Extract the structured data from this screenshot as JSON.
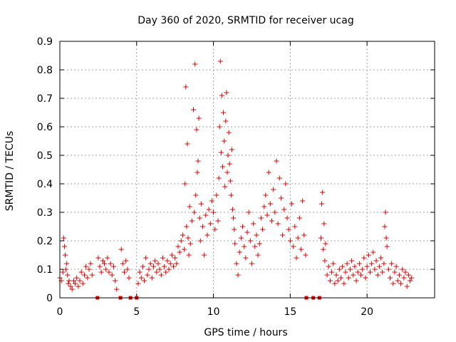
{
  "chart_data": {
    "type": "scatter",
    "title": "Day 360 of 2020, SRMTID for receiver ucag",
    "xlabel": "GPS time / hours",
    "ylabel": "SRMTID / TECUs",
    "xlim": [
      0,
      24.4
    ],
    "ylim": [
      0,
      0.9
    ],
    "xticks": [
      0,
      5,
      10,
      15,
      20
    ],
    "yticks": [
      0,
      0.1,
      0.2,
      0.3,
      0.4,
      0.5,
      0.6,
      0.7,
      0.8,
      0.9
    ],
    "ytick_labels": [
      "0",
      "0.1",
      "0.2",
      "0.3",
      "0.4",
      "0.5",
      "0.6",
      "0.7",
      "0.8",
      "0.9"
    ],
    "xtick_labels": [
      "0",
      "5",
      "10",
      "15",
      "20"
    ],
    "grid": true,
    "marker": "plus",
    "color": "#e00000",
    "missing_data_markers_x": [
      2.45,
      3.95,
      4.6,
      5.0,
      16.05,
      16.5,
      16.9
    ],
    "series": [
      {
        "name": "SRMTID",
        "x": [
          0.0,
          0.1,
          0.2,
          0.25,
          0.3,
          0.35,
          0.4,
          0.45,
          0.5,
          0.55,
          0.6,
          0.7,
          0.8,
          0.9,
          1.0,
          1.1,
          1.2,
          1.3,
          1.4,
          1.5,
          1.6,
          1.7,
          1.8,
          1.9,
          2.0,
          2.1,
          2.5,
          2.6,
          2.7,
          2.8,
          2.9,
          3.0,
          3.1,
          3.2,
          3.3,
          3.4,
          3.5,
          3.6,
          3.7,
          4.0,
          4.1,
          4.2,
          4.3,
          4.4,
          4.5,
          5.1,
          5.2,
          5.3,
          5.4,
          5.5,
          5.6,
          5.7,
          5.8,
          5.9,
          6.0,
          6.1,
          6.2,
          6.3,
          6.4,
          6.5,
          6.6,
          6.7,
          6.8,
          6.9,
          7.0,
          7.1,
          7.2,
          7.3,
          7.4,
          7.5,
          7.6,
          7.7,
          7.8,
          7.9,
          8.0,
          8.1,
          8.15,
          8.2,
          8.25,
          8.3,
          8.35,
          8.4,
          8.45,
          8.5,
          8.6,
          8.7,
          8.75,
          8.8,
          8.85,
          8.9,
          8.95,
          9.0,
          9.05,
          9.1,
          9.15,
          9.2,
          9.3,
          9.4,
          9.5,
          9.6,
          9.7,
          9.8,
          9.9,
          10.0,
          10.1,
          10.2,
          10.3,
          10.35,
          10.4,
          10.45,
          10.5,
          10.55,
          10.6,
          10.65,
          10.7,
          10.75,
          10.8,
          10.85,
          10.9,
          10.95,
          11.0,
          11.05,
          11.1,
          11.15,
          11.2,
          11.25,
          11.3,
          11.35,
          11.4,
          11.5,
          11.6,
          11.7,
          11.8,
          11.9,
          12.0,
          12.1,
          12.2,
          12.3,
          12.4,
          12.5,
          12.6,
          12.7,
          12.8,
          12.9,
          13.0,
          13.1,
          13.2,
          13.3,
          13.4,
          13.5,
          13.6,
          13.7,
          13.8,
          13.9,
          14.0,
          14.1,
          14.2,
          14.3,
          14.4,
          14.5,
          14.6,
          14.7,
          14.8,
          14.9,
          15.0,
          15.1,
          15.2,
          15.3,
          15.4,
          15.5,
          15.6,
          15.7,
          15.8,
          15.9,
          16.0,
          17.0,
          17.05,
          17.1,
          17.15,
          17.2,
          17.25,
          17.3,
          17.4,
          17.5,
          17.6,
          17.7,
          17.8,
          17.9,
          18.0,
          18.1,
          18.2,
          18.3,
          18.4,
          18.5,
          18.6,
          18.7,
          18.8,
          18.9,
          19.0,
          19.1,
          19.2,
          19.3,
          19.4,
          19.5,
          19.6,
          19.7,
          19.8,
          19.9,
          20.0,
          20.1,
          20.2,
          20.3,
          20.4,
          20.5,
          20.6,
          20.7,
          20.8,
          20.9,
          21.0,
          21.1,
          21.15,
          21.2,
          21.25,
          21.3,
          21.4,
          21.5,
          21.6,
          21.7,
          21.8,
          21.9,
          22.0,
          22.1,
          22.2,
          22.3,
          22.4,
          22.5,
          22.6,
          22.7,
          22.8,
          22.9
        ],
        "y": [
          0.07,
          0.06,
          0.09,
          0.21,
          0.18,
          0.15,
          0.1,
          0.12,
          0.08,
          0.05,
          0.06,
          0.04,
          0.03,
          0.06,
          0.05,
          0.07,
          0.04,
          0.06,
          0.09,
          0.05,
          0.08,
          0.11,
          0.07,
          0.1,
          0.12,
          0.08,
          0.14,
          0.11,
          0.09,
          0.13,
          0.12,
          0.1,
          0.14,
          0.09,
          0.12,
          0.08,
          0.11,
          0.06,
          0.03,
          0.17,
          0.12,
          0.09,
          0.13,
          0.1,
          0.07,
          0.05,
          0.09,
          0.07,
          0.11,
          0.06,
          0.14,
          0.08,
          0.1,
          0.12,
          0.07,
          0.11,
          0.13,
          0.09,
          0.12,
          0.1,
          0.08,
          0.14,
          0.11,
          0.09,
          0.13,
          0.1,
          0.12,
          0.15,
          0.11,
          0.14,
          0.12,
          0.18,
          0.16,
          0.2,
          0.22,
          0.17,
          0.4,
          0.74,
          0.25,
          0.54,
          0.21,
          0.15,
          0.32,
          0.19,
          0.27,
          0.66,
          0.3,
          0.82,
          0.36,
          0.59,
          0.44,
          0.48,
          0.63,
          0.28,
          0.2,
          0.33,
          0.25,
          0.15,
          0.29,
          0.22,
          0.31,
          0.26,
          0.34,
          0.3,
          0.24,
          0.36,
          0.27,
          0.42,
          0.6,
          0.83,
          0.51,
          0.71,
          0.46,
          0.65,
          0.55,
          0.39,
          0.62,
          0.72,
          0.44,
          0.5,
          0.58,
          0.47,
          0.41,
          0.36,
          0.52,
          0.31,
          0.28,
          0.24,
          0.19,
          0.12,
          0.08,
          0.16,
          0.21,
          0.25,
          0.18,
          0.14,
          0.23,
          0.3,
          0.2,
          0.12,
          0.26,
          0.18,
          0.22,
          0.15,
          0.19,
          0.28,
          0.24,
          0.32,
          0.36,
          0.29,
          0.44,
          0.33,
          0.27,
          0.38,
          0.3,
          0.48,
          0.26,
          0.42,
          0.35,
          0.22,
          0.31,
          0.4,
          0.28,
          0.24,
          0.2,
          0.33,
          0.18,
          0.25,
          0.14,
          0.21,
          0.28,
          0.17,
          0.34,
          0.22,
          0.15,
          0.21,
          0.33,
          0.37,
          0.17,
          0.26,
          0.13,
          0.19,
          0.08,
          0.11,
          0.06,
          0.09,
          0.12,
          0.05,
          0.08,
          0.06,
          0.1,
          0.07,
          0.11,
          0.05,
          0.09,
          0.12,
          0.07,
          0.1,
          0.13,
          0.08,
          0.11,
          0.06,
          0.09,
          0.12,
          0.08,
          0.1,
          0.14,
          0.07,
          0.11,
          0.15,
          0.09,
          0.12,
          0.16,
          0.1,
          0.13,
          0.08,
          0.11,
          0.14,
          0.09,
          0.12,
          0.25,
          0.3,
          0.21,
          0.18,
          0.1,
          0.07,
          0.12,
          0.05,
          0.09,
          0.11,
          0.06,
          0.08,
          0.05,
          0.1,
          0.07,
          0.09,
          0.04,
          0.08,
          0.06,
          0.07
        ]
      }
    ]
  }
}
